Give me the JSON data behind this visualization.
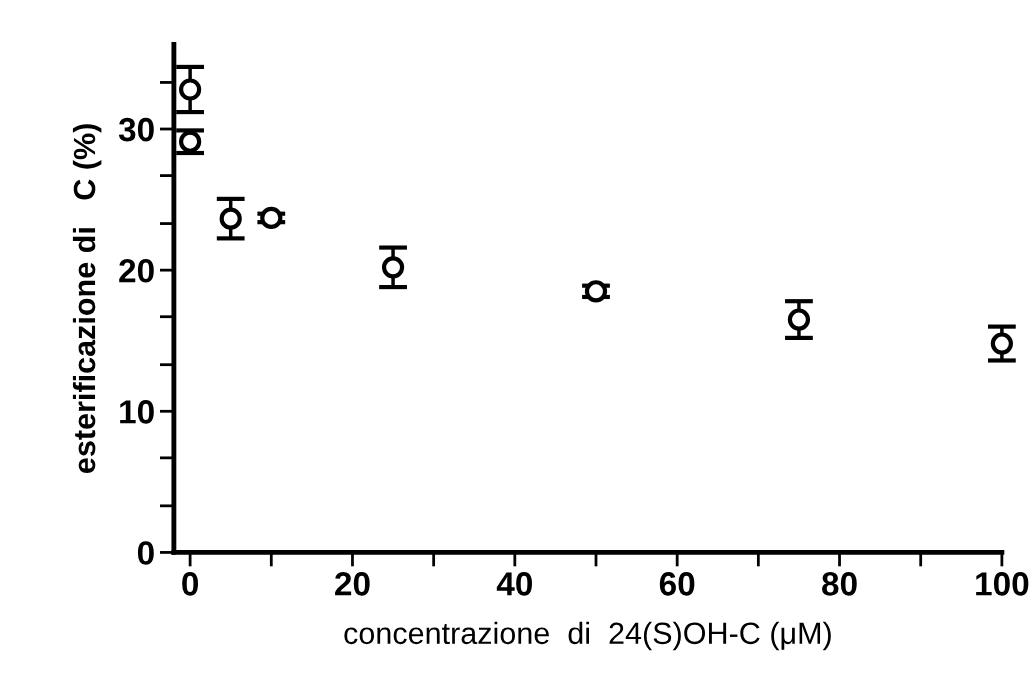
{
  "chart_data": {
    "type": "scatter",
    "xlabel": "concentrazione  di  24(S)OH-C (μM)",
    "ylabel": "esterificazione di   C (%)",
    "x": [
      0,
      0,
      5,
      10,
      25,
      50,
      75,
      100
    ],
    "values": [
      32.8,
      29.1,
      23.65,
      23.7,
      20.2,
      18.5,
      16.5,
      14.8
    ],
    "errors": [
      1.6,
      0.8,
      1.4,
      0.3,
      1.4,
      0.4,
      1.3,
      1.2
    ],
    "color": "#000000",
    "marker": "circle",
    "xlim": [
      -2,
      100
    ],
    "xticks": [
      0,
      {
        "value": 10,
        "label": null
      },
      20,
      {
        "value": 30,
        "label": null
      },
      40,
      {
        "value": 50,
        "label": null
      },
      60,
      {
        "value": 70,
        "label": null
      },
      80,
      {
        "value": 90,
        "label": null
      },
      100
    ],
    "ylim": [
      0,
      36
    ],
    "yticks": [
      0,
      {
        "value": 3.3,
        "label": null
      },
      {
        "value": 6.7,
        "label": null
      },
      10,
      {
        "value": 13.3,
        "label": null
      },
      {
        "value": 16.7,
        "label": null
      },
      20,
      {
        "value": 23.3,
        "label": null
      },
      {
        "value": 26.7,
        "label": null
      },
      30,
      {
        "value": 33.3,
        "label": null
      }
    ],
    "grid": false,
    "legend": false
  }
}
